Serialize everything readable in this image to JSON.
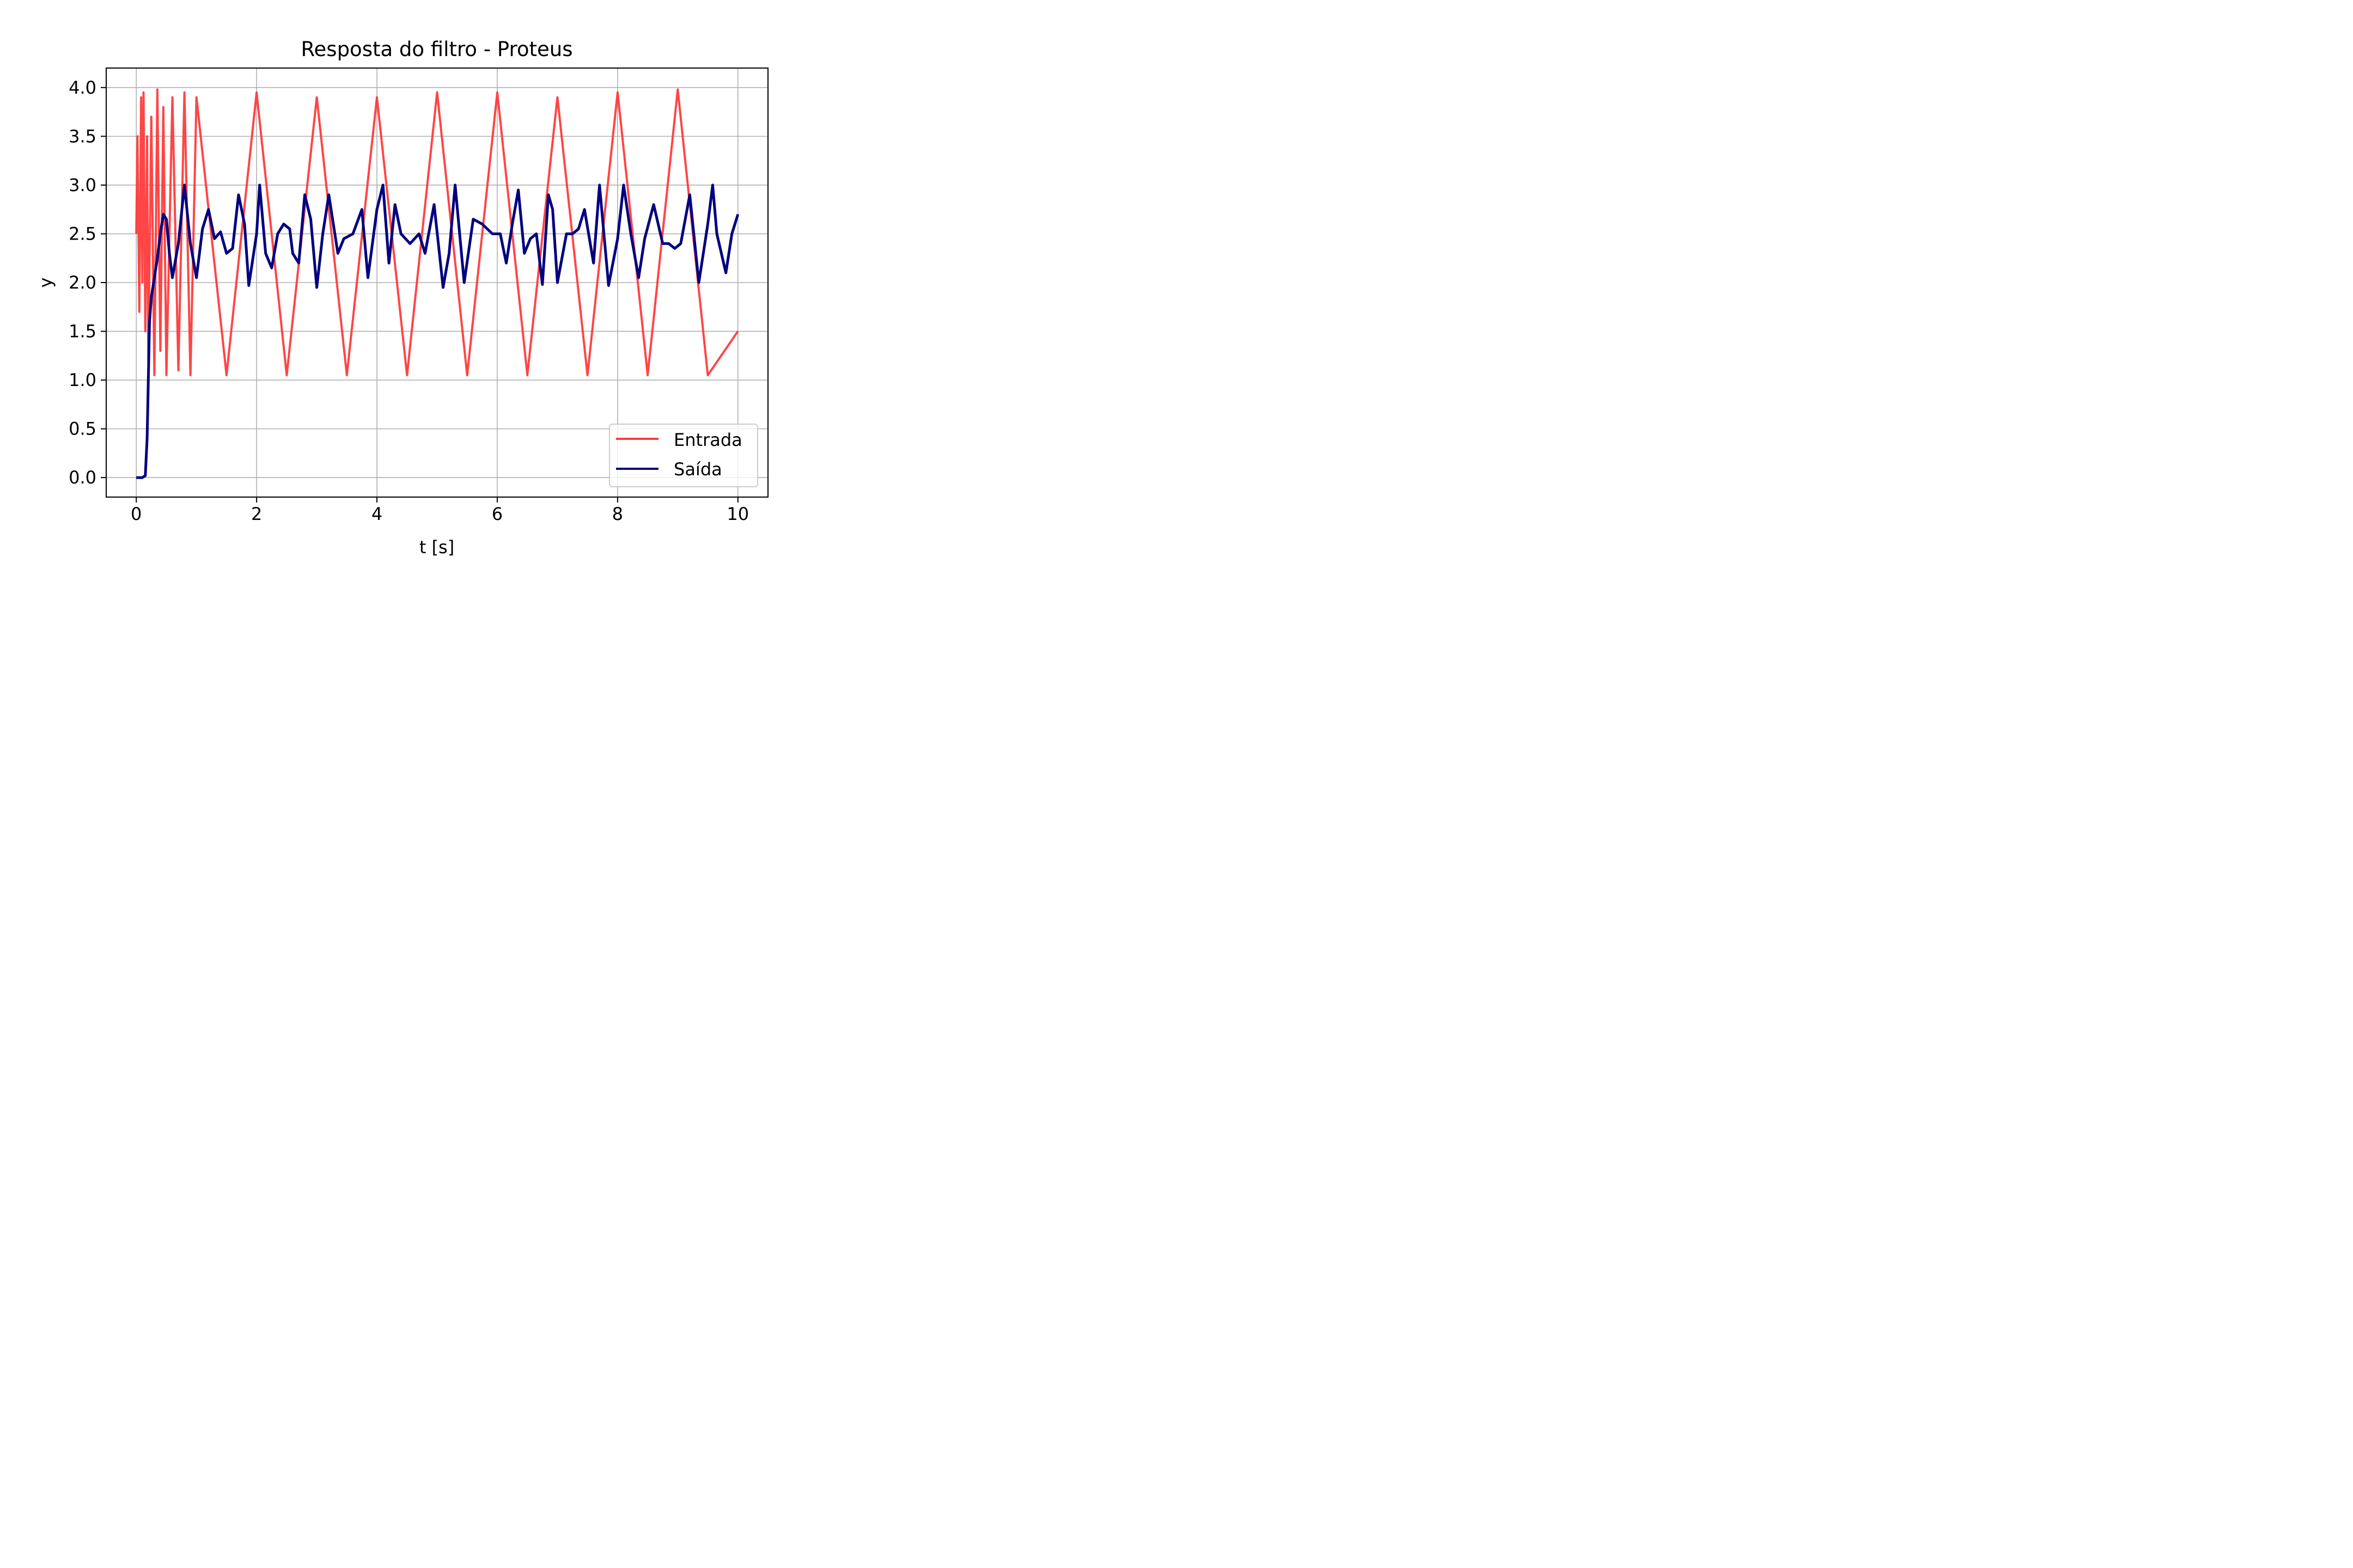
{
  "chart_data": {
    "type": "line",
    "title": "Resposta do filtro - Proteus",
    "xlabel": "t [s]",
    "ylabel": "y",
    "xlim": [
      -0.5,
      10.5
    ],
    "ylim": [
      -0.2,
      4.2
    ],
    "x_ticks": [
      {
        "value": 0,
        "label": "0"
      },
      {
        "value": 2,
        "label": "2"
      },
      {
        "value": 4,
        "label": "4"
      },
      {
        "value": 6,
        "label": "6"
      },
      {
        "value": 8,
        "label": "8"
      },
      {
        "value": 10,
        "label": "10"
      }
    ],
    "y_ticks": [
      {
        "value": 0.0,
        "label": "0.0"
      },
      {
        "value": 0.5,
        "label": "0.5"
      },
      {
        "value": 1.0,
        "label": "1.0"
      },
      {
        "value": 1.5,
        "label": "1.5"
      },
      {
        "value": 2.0,
        "label": "2.0"
      },
      {
        "value": 2.5,
        "label": "2.5"
      },
      {
        "value": 3.0,
        "label": "3.0"
      },
      {
        "value": 3.5,
        "label": "3.5"
      },
      {
        "value": 4.0,
        "label": "4.0"
      }
    ],
    "grid": true,
    "legend_position": "bottom-right",
    "series": [
      {
        "name": "Entrada",
        "color": "#ff3b3b",
        "x": [
          0,
          0.02,
          0.05,
          0.08,
          0.1,
          0.12,
          0.15,
          0.18,
          0.2,
          0.25,
          0.3,
          0.35,
          0.4,
          0.45,
          0.5,
          0.6,
          0.7,
          0.8,
          0.9,
          1.0,
          1.5,
          2.0,
          2.5,
          3.0,
          3.5,
          4.0,
          4.5,
          5.0,
          5.5,
          6.0,
          6.5,
          7.0,
          7.5,
          8.0,
          8.5,
          9.0,
          9.5,
          10.0
        ],
        "y": [
          2.5,
          3.5,
          1.7,
          3.9,
          2.0,
          3.95,
          1.5,
          3.5,
          1.2,
          3.7,
          1.05,
          3.98,
          1.3,
          3.8,
          1.05,
          3.9,
          1.1,
          3.95,
          1.05,
          3.9,
          1.05,
          3.95,
          1.05,
          3.9,
          1.05,
          3.9,
          1.05,
          3.95,
          1.05,
          3.95,
          1.05,
          3.9,
          1.05,
          3.95,
          1.05,
          3.98,
          1.05,
          1.5
        ]
      },
      {
        "name": "Saída",
        "color": "#00007f",
        "x": [
          0.0,
          0.05,
          0.1,
          0.15,
          0.18,
          0.2,
          0.22,
          0.25,
          0.3,
          0.35,
          0.4,
          0.45,
          0.5,
          0.55,
          0.6,
          0.7,
          0.8,
          0.9,
          1.0,
          1.1,
          1.2,
          1.3,
          1.4,
          1.5,
          1.6,
          1.7,
          1.8,
          1.87,
          2.0,
          2.05,
          2.15,
          2.25,
          2.35,
          2.45,
          2.55,
          2.6,
          2.7,
          2.8,
          2.9,
          3.0,
          3.1,
          3.2,
          3.35,
          3.45,
          3.6,
          3.75,
          3.85,
          4.0,
          4.1,
          4.2,
          4.3,
          4.4,
          4.55,
          4.7,
          4.8,
          4.95,
          5.1,
          5.2,
          5.3,
          5.45,
          5.6,
          5.75,
          5.92,
          6.05,
          6.15,
          6.25,
          6.35,
          6.45,
          6.55,
          6.65,
          6.75,
          6.85,
          6.92,
          7.0,
          7.15,
          7.25,
          7.35,
          7.45,
          7.6,
          7.7,
          7.85,
          8.0,
          8.1,
          8.22,
          8.35,
          8.45,
          8.6,
          8.75,
          8.85,
          8.95,
          9.05,
          9.2,
          9.35,
          9.5,
          9.58,
          9.65,
          9.8,
          9.9,
          10.0
        ],
        "y": [
          0.0,
          0.0,
          0.0,
          0.02,
          0.4,
          1.0,
          1.6,
          1.85,
          2.05,
          2.25,
          2.5,
          2.7,
          2.65,
          2.3,
          2.05,
          2.4,
          3.0,
          2.4,
          2.05,
          2.55,
          2.75,
          2.45,
          2.52,
          2.3,
          2.35,
          2.9,
          2.6,
          1.97,
          2.5,
          3.0,
          2.3,
          2.15,
          2.5,
          2.6,
          2.55,
          2.3,
          2.2,
          2.9,
          2.65,
          1.95,
          2.5,
          2.9,
          2.3,
          2.45,
          2.5,
          2.75,
          2.05,
          2.75,
          3.0,
          2.2,
          2.8,
          2.5,
          2.4,
          2.5,
          2.3,
          2.8,
          1.95,
          2.3,
          3.0,
          2.0,
          2.65,
          2.6,
          2.5,
          2.5,
          2.2,
          2.6,
          2.95,
          2.3,
          2.45,
          2.5,
          1.98,
          2.9,
          2.75,
          2.0,
          2.5,
          2.5,
          2.55,
          2.75,
          2.2,
          3.0,
          1.97,
          2.45,
          3.0,
          2.5,
          2.05,
          2.45,
          2.8,
          2.4,
          2.4,
          2.35,
          2.4,
          2.9,
          2.0,
          2.6,
          3.0,
          2.5,
          2.1,
          2.5,
          2.7
        ]
      }
    ]
  }
}
